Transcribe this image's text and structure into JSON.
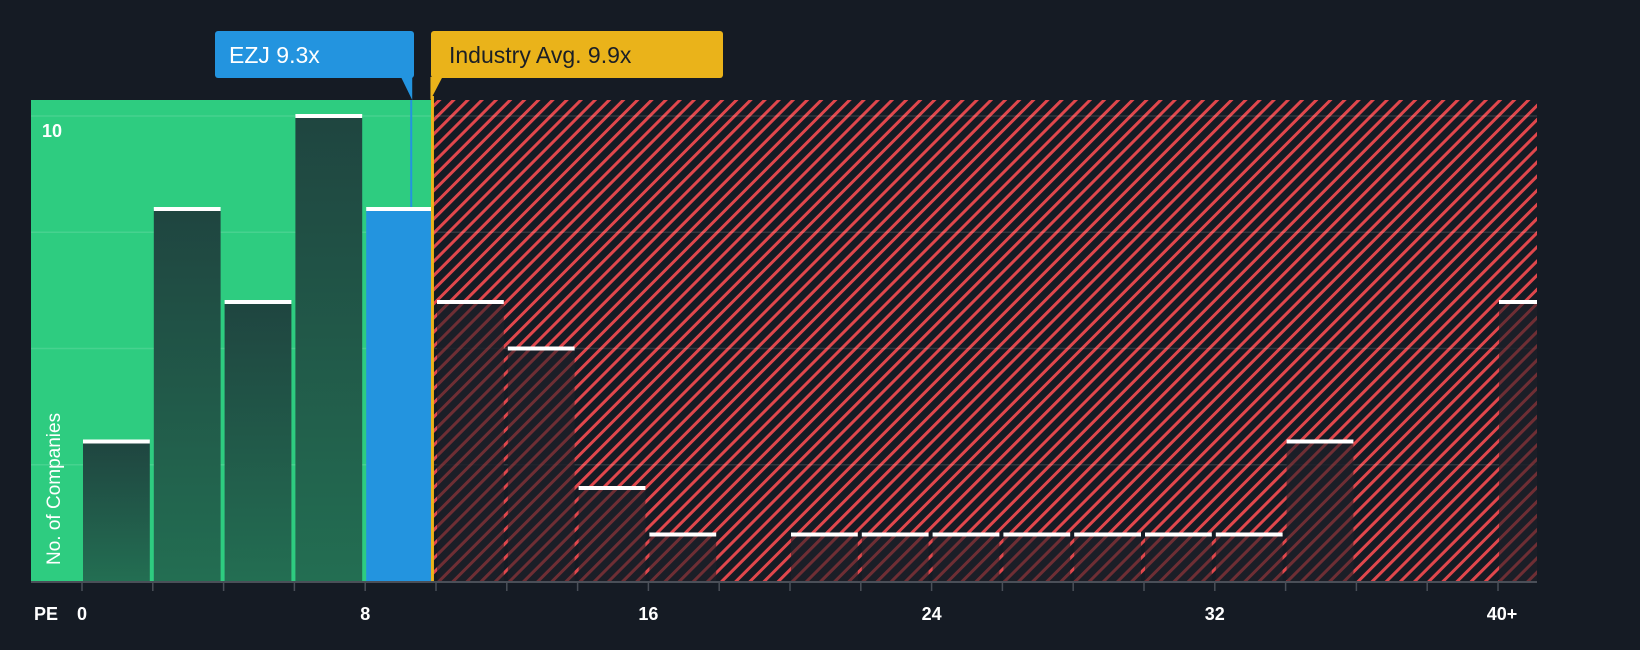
{
  "colors": {
    "background": "#151b24",
    "undervalued_zone": "#2ecc80",
    "overvalued_hatch": "#e0474c",
    "company_bar": "#2394df",
    "industry_line": "#eab31a",
    "bar_dark_green": "#1f4a40",
    "bar_dark_red": "#1c1f28",
    "bar_cap": "#ffffff",
    "axis": "#4a4f58",
    "text_light": "#ffffff"
  },
  "markers": {
    "company": {
      "label": "EZJ 9.3x",
      "ticker": "EZJ",
      "value": 9.3
    },
    "industry": {
      "label": "Industry Avg. 9.9x",
      "value": 9.9
    }
  },
  "axis": {
    "x_title": "PE",
    "y_title": "No. of Companies",
    "y_tick_label": "10",
    "x_tick_labels": [
      {
        "value": 0,
        "label": "0"
      },
      {
        "value": 8,
        "label": "8"
      },
      {
        "value": 16,
        "label": "16"
      },
      {
        "value": 24,
        "label": "24"
      },
      {
        "value": 32,
        "label": "32"
      },
      {
        "value": 41,
        "label": "40+"
      }
    ]
  },
  "chart_data": {
    "type": "bar",
    "title": "",
    "xlabel": "PE",
    "ylabel": "No. of Companies",
    "bin_width": 2,
    "categories": [
      "0-2",
      "2-4",
      "4-6",
      "6-8",
      "8-10",
      "10-12",
      "12-14",
      "14-16",
      "16-18",
      "18-20",
      "20-22",
      "22-24",
      "24-26",
      "26-28",
      "28-30",
      "30-32",
      "32-34",
      "34-36",
      "36-38",
      "38-40",
      "40+"
    ],
    "bin_starts": [
      0,
      2,
      4,
      6,
      8,
      10,
      12,
      14,
      16,
      18,
      20,
      22,
      24,
      26,
      28,
      30,
      32,
      34,
      36,
      38,
      40
    ],
    "values": [
      3,
      8,
      6,
      10,
      8,
      6,
      5,
      2,
      1,
      0,
      1,
      1,
      1,
      1,
      1,
      1,
      1,
      3,
      0,
      0,
      6
    ],
    "highlight_bin": "8-10",
    "ylim": [
      0,
      10.4
    ],
    "y_ticks": [
      10
    ],
    "gridlines_y": [
      2.5,
      5,
      7.5,
      10
    ],
    "grid": true,
    "legend": "none",
    "annotations": [
      {
        "text": "EZJ 9.3x",
        "x": 9.3,
        "color": "#2394df"
      },
      {
        "text": "Industry Avg. 9.9x",
        "x": 9.9,
        "color": "#eab31a"
      }
    ],
    "shaded_regions": [
      {
        "from": -1.4,
        "to": 9.9,
        "style": "solid green",
        "meaning": "below industry average"
      },
      {
        "from": 9.9,
        "to": 41.1,
        "style": "red diagonal hatch",
        "meaning": "above industry average"
      }
    ]
  }
}
